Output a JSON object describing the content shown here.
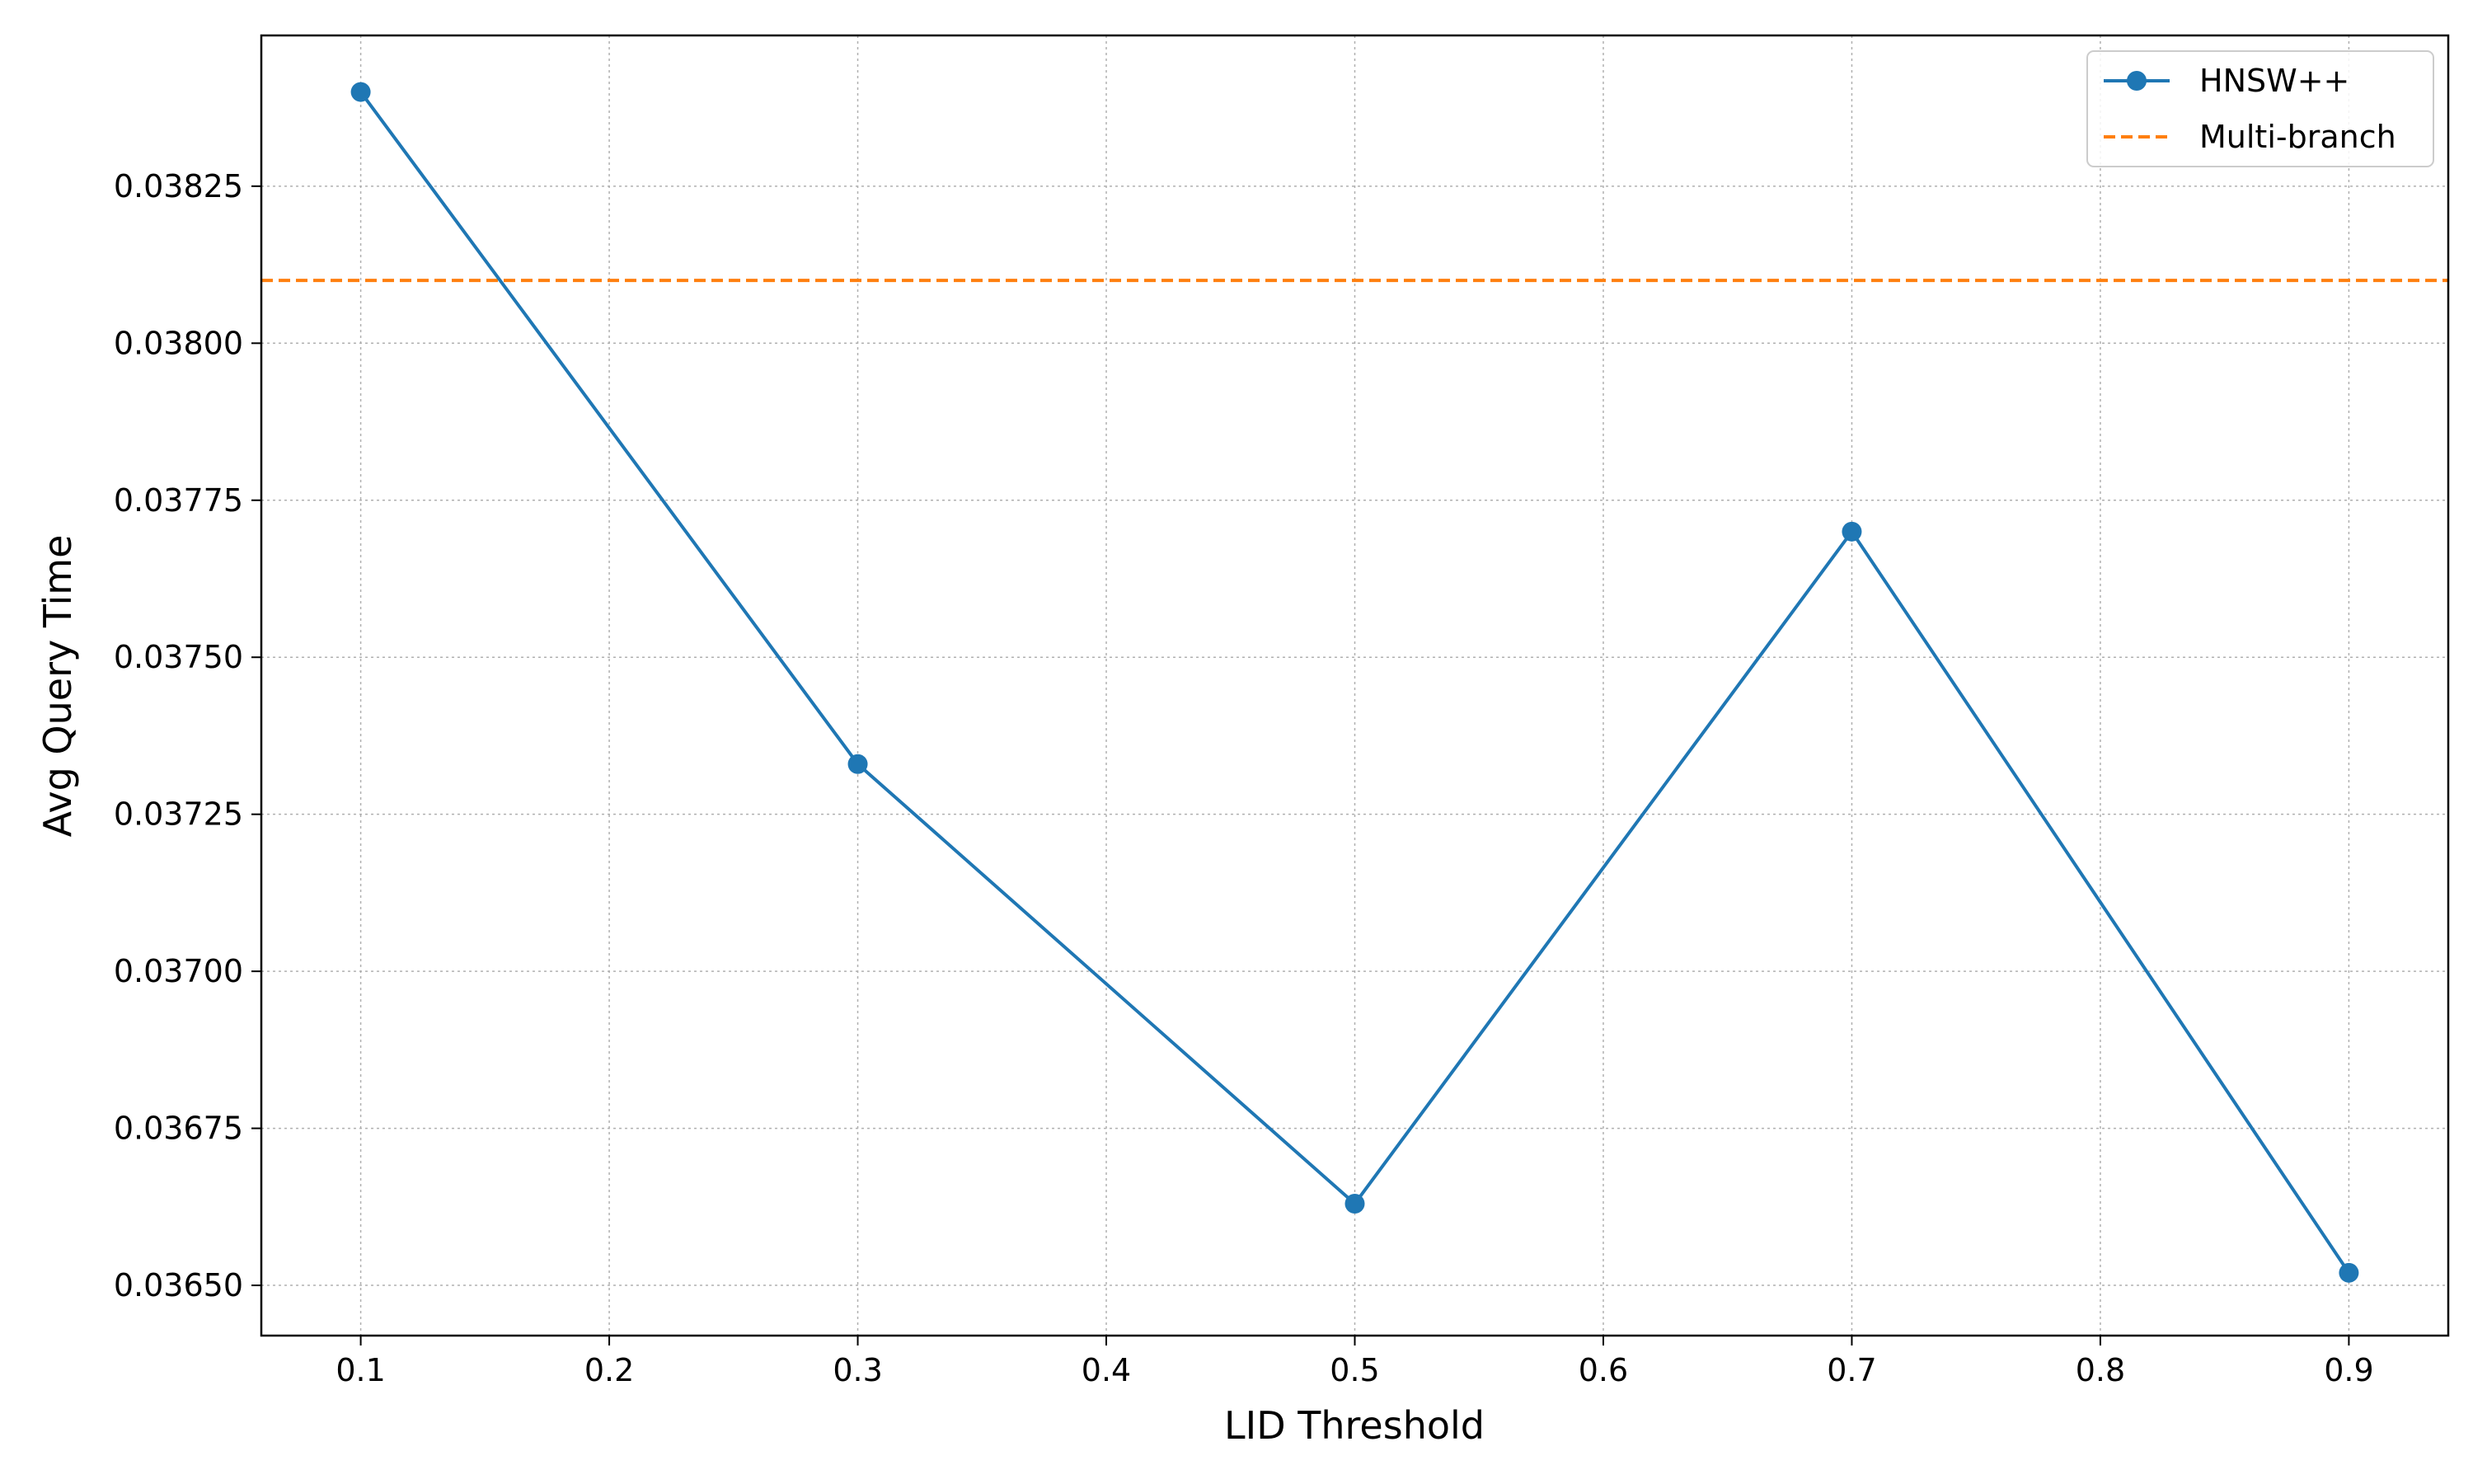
{
  "chart_data": {
    "type": "line",
    "title": "",
    "xlabel": "LID Threshold",
    "ylabel": "Avg Query Time",
    "xlim": [
      0.06,
      0.94
    ],
    "ylim": [
      0.03642,
      0.03849
    ],
    "xticks": [
      0.1,
      0.2,
      0.3,
      0.4,
      0.5,
      0.6,
      0.7,
      0.8,
      0.9
    ],
    "xtick_labels": [
      "0.1",
      "0.2",
      "0.3",
      "0.4",
      "0.5",
      "0.6",
      "0.7",
      "0.8",
      "0.9"
    ],
    "yticks": [
      0.0365,
      0.03675,
      0.037,
      0.03725,
      0.0375,
      0.03775,
      0.038,
      0.03825
    ],
    "ytick_labels": [
      "0.03650",
      "0.03675",
      "0.03700",
      "0.03725",
      "0.03750",
      "0.03775",
      "0.03800",
      "0.03825"
    ],
    "grid": true,
    "legend_position": "top-right",
    "series": [
      {
        "name": "HNSW++",
        "style": "solid-with-markers",
        "color": "#1f77b4",
        "x": [
          0.1,
          0.3,
          0.5,
          0.7,
          0.9
        ],
        "y": [
          0.0384,
          0.03733,
          0.03663,
          0.0377,
          0.03652
        ]
      }
    ],
    "reference_lines": [
      {
        "name": "Multi-branch",
        "style": "dashed",
        "color": "#ff7f0e",
        "y": 0.0381
      }
    ]
  }
}
